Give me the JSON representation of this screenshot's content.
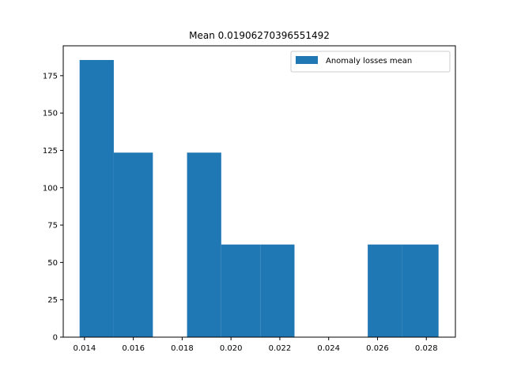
{
  "chart_data": {
    "type": "bar",
    "title": "Mean 0.01906270396551492",
    "xlabel": "",
    "ylabel": "",
    "x_ticks": [
      "0.014",
      "0.016",
      "0.018",
      "0.020",
      "0.022",
      "0.024",
      "0.026",
      "0.028"
    ],
    "y_ticks": [
      "0",
      "25",
      "50",
      "75",
      "100",
      "125",
      "150",
      "175"
    ],
    "xlim": [
      0.01313,
      0.02919
    ],
    "ylim": [
      0,
      195
    ],
    "bins": [
      {
        "x0": 0.0138,
        "x1": 0.0152,
        "value": 185.5
      },
      {
        "x0": 0.0152,
        "x1": 0.0168,
        "value": 123.5
      },
      {
        "x0": 0.0168,
        "x1": 0.0182,
        "value": 0
      },
      {
        "x0": 0.0182,
        "x1": 0.0196,
        "value": 123.5
      },
      {
        "x0": 0.0196,
        "x1": 0.0212,
        "value": 62
      },
      {
        "x0": 0.0212,
        "x1": 0.0226,
        "value": 62
      },
      {
        "x0": 0.0226,
        "x1": 0.024,
        "value": 0
      },
      {
        "x0": 0.024,
        "x1": 0.0256,
        "value": 0
      },
      {
        "x0": 0.0256,
        "x1": 0.027,
        "value": 62
      },
      {
        "x0": 0.027,
        "x1": 0.0285,
        "value": 62
      }
    ],
    "series": [
      {
        "name": "Anomaly losses mean",
        "color": "#1f77b4"
      }
    ],
    "legend_position": "top-right",
    "grid": false
  }
}
